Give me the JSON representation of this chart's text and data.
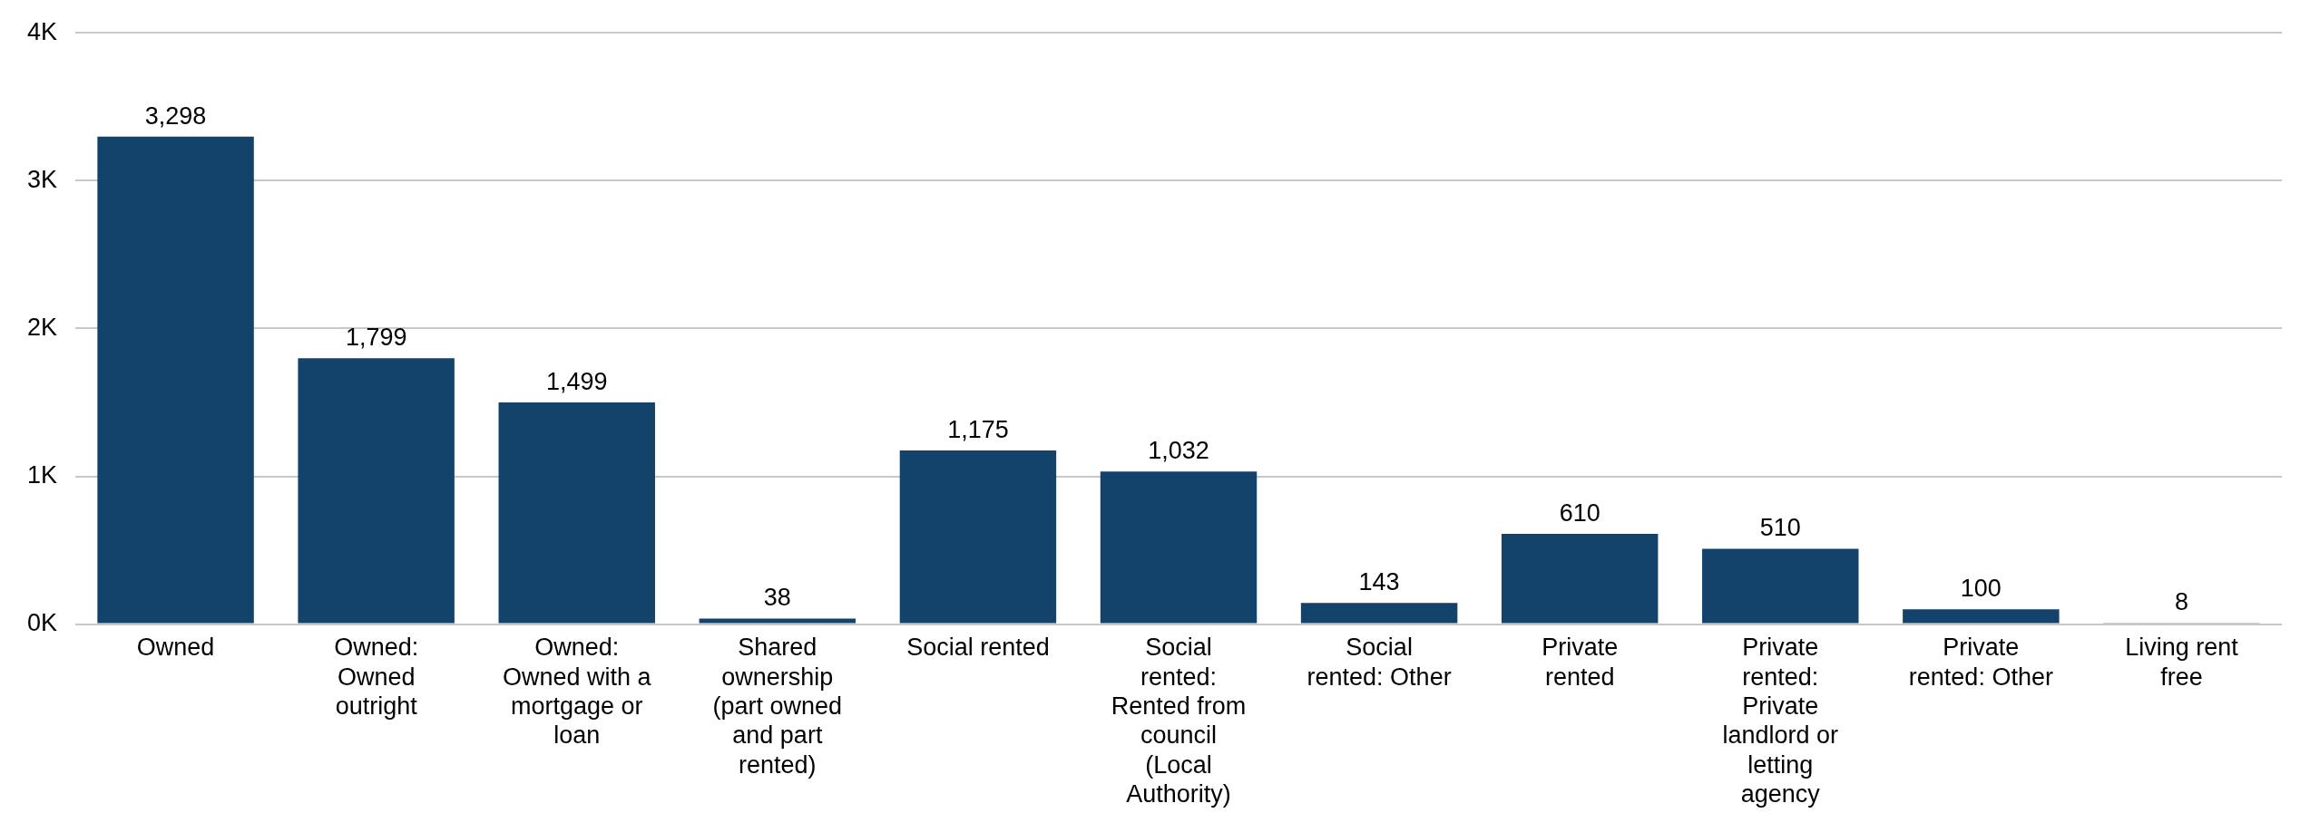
{
  "chart_data": {
    "type": "bar",
    "categories": [
      "Owned",
      "Owned: Owned outright",
      "Owned: Owned with a mortgage or loan",
      "Shared ownership (part owned and part rented)",
      "Social rented",
      "Social rented: Rented from council (Local Authority)",
      "Social rented: Other",
      "Private rented",
      "Private rented: Private landlord or letting agency",
      "Private rented: Other",
      "Living rent free"
    ],
    "values": [
      3298,
      1799,
      1499,
      38,
      1175,
      1032,
      143,
      610,
      510,
      100,
      8
    ],
    "color": "#13426b",
    "ylim": [
      0,
      4000
    ],
    "yticks": [
      {
        "value": 0,
        "label": "0K"
      },
      {
        "value": 1000,
        "label": "1K"
      },
      {
        "value": 2000,
        "label": "2K"
      },
      {
        "value": 3000,
        "label": "3K"
      },
      {
        "value": 4000,
        "label": "4K"
      }
    ],
    "grid": "y",
    "value_labels": [
      "3,298",
      "1,799",
      "1,499",
      "38",
      "1,175",
      "1,032",
      "143",
      "610",
      "510",
      "100",
      "8"
    ]
  }
}
